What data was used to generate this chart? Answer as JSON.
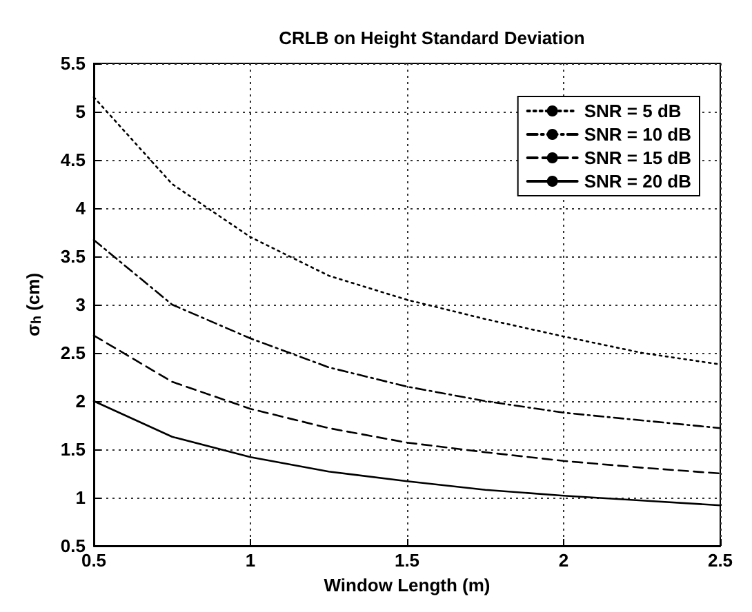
{
  "chart_data": {
    "type": "line",
    "title": "CRLB on Height Standard Deviation",
    "xlabel": "Window Length (m)",
    "ylabel": "σ$_{h}$ (cm)",
    "x": [
      0.5,
      0.75,
      1,
      1.25,
      1.5,
      1.75,
      2,
      2.25,
      2.5
    ],
    "series": [
      {
        "name": "SNR = 5 dB",
        "color": "#000000",
        "line_style": "dotted",
        "values": [
          5.15,
          4.25,
          3.7,
          3.3,
          3.05,
          2.85,
          2.67,
          2.5,
          2.38
        ]
      },
      {
        "name": "SNR = 10 dB",
        "color": "#000000",
        "line_style": "dashdot",
        "values": [
          3.67,
          3.0,
          2.65,
          2.35,
          2.15,
          2.0,
          1.88,
          1.8,
          1.72
        ]
      },
      {
        "name": "SNR = 15 dB",
        "color": "#000000",
        "line_style": "dashed",
        "values": [
          2.68,
          2.2,
          1.92,
          1.72,
          1.57,
          1.47,
          1.38,
          1.31,
          1.25
        ]
      },
      {
        "name": "SNR = 20 dB",
        "color": "#000000",
        "line_style": "solid",
        "values": [
          2.0,
          1.63,
          1.42,
          1.27,
          1.17,
          1.08,
          1.02,
          0.97,
          0.92
        ]
      }
    ],
    "xlim": [
      0.5,
      2.5
    ],
    "xticks": [
      0.5,
      1,
      1.5,
      2,
      2.5
    ],
    "ylim": [
      0.5,
      5.5
    ],
    "yticks": [
      0.5,
      1,
      1.5,
      2,
      2.5,
      3,
      3.5,
      4,
      4.5,
      5,
      5.5
    ],
    "grid": true,
    "legend": "top right",
    "marker": "none"
  }
}
